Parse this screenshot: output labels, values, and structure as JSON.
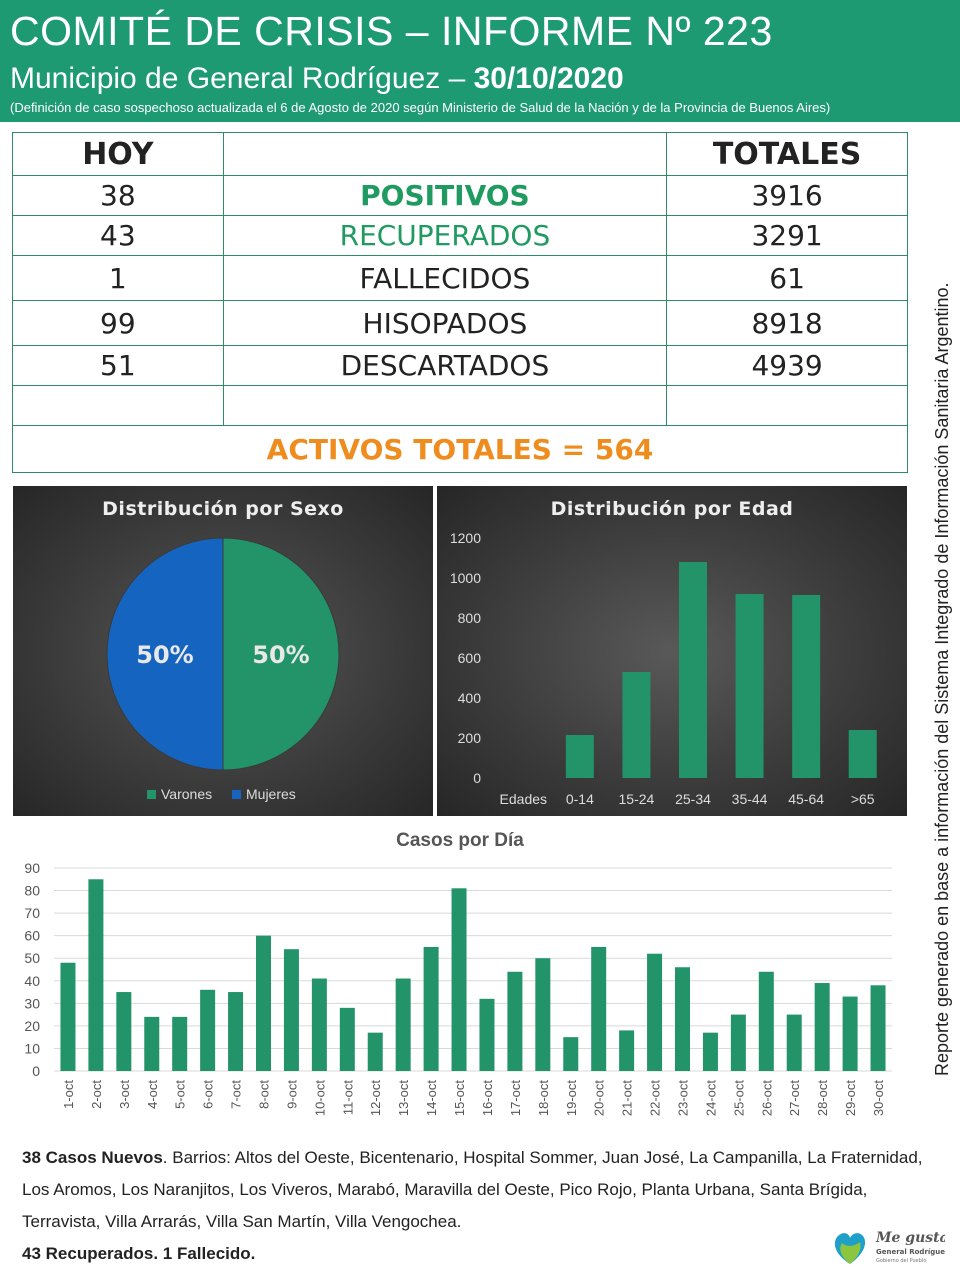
{
  "header": {
    "title": "COMITÉ DE CRISIS – INFORME Nº 223",
    "subtitle_prefix": "Municipio de General Rodríguez – ",
    "date": "30/10/2020",
    "note": "(Definición de caso sospechoso actualizada el 6 de Agosto de 2020 según Ministerio de Salud de la Nación y de la Provincia de Buenos Aires)"
  },
  "table": {
    "col_hoy": "HOY",
    "col_totales": "TOTALES",
    "rows": [
      {
        "hoy": "38",
        "label": "POSITIVOS",
        "total": "3916"
      },
      {
        "hoy": "43",
        "label": "RECUPERADOS",
        "total": "3291"
      },
      {
        "hoy": "1",
        "label": "FALLECIDOS",
        "total": "61"
      },
      {
        "hoy": "99",
        "label": "HISOPADOS",
        "total": "8918"
      },
      {
        "hoy": "51",
        "label": "DESCARTADOS",
        "total": "4939"
      }
    ],
    "activos": "ACTIVOS TOTALES = 564"
  },
  "side_note": "Reporte generado en base a información del Sistema Integrado de Información Sanitaria Argentino.",
  "colors": {
    "green": "#1e9a72",
    "bar": "#23936a",
    "orange": "#ef8c1e",
    "blue": "#1565c0"
  },
  "chart_data": [
    {
      "type": "pie",
      "title": "Distribución por Sexo",
      "labels": [
        "Varones",
        "Mujeres"
      ],
      "values": [
        50,
        50
      ],
      "value_labels": [
        "50%",
        "50%"
      ],
      "colors": [
        "#23936a",
        "#1565c0"
      ],
      "legend": "bottom"
    },
    {
      "type": "bar",
      "title": "Distribución por Edad",
      "categories": [
        "Edades",
        "0-14",
        "15-24",
        "25-34",
        "35-44",
        "45-64",
        ">65"
      ],
      "values": [
        0,
        215,
        530,
        1080,
        920,
        915,
        240
      ],
      "ylim": [
        0,
        1200
      ],
      "yticks": [
        "0",
        "200",
        "400",
        "600",
        "800",
        "1000",
        "1200"
      ]
    },
    {
      "type": "bar",
      "title": "Casos por Día",
      "categories": [
        "1-oct",
        "2-oct",
        "3-oct",
        "4-oct",
        "5-oct",
        "6-oct",
        "7-oct",
        "8-oct",
        "9-oct",
        "10-oct",
        "11-oct",
        "12-oct",
        "13-oct",
        "14-oct",
        "15-oct",
        "16-oct",
        "17-oct",
        "18-oct",
        "19-oct",
        "20-oct",
        "21-oct",
        "22-oct",
        "23-oct",
        "24-oct",
        "25-oct",
        "26-oct",
        "27-oct",
        "28-oct",
        "29-oct",
        "30-oct"
      ],
      "values": [
        48,
        85,
        35,
        24,
        24,
        36,
        35,
        60,
        54,
        41,
        28,
        17,
        41,
        55,
        81,
        32,
        44,
        50,
        15,
        55,
        18,
        52,
        46,
        17,
        25,
        44,
        25,
        39,
        33,
        38
      ],
      "ylim": [
        0,
        90
      ],
      "yticks": [
        "0",
        "10",
        "20",
        "30",
        "40",
        "50",
        "60",
        "70",
        "80",
        "90"
      ],
      "grid": true
    }
  ],
  "footer": {
    "casos_bold": "38 Casos Nuevos",
    "casos_text": ". Barrios: Altos del Oeste, Bicentenario, Hospital Sommer, Juan José, La Campanilla, La Fraternidad, Los Aromos, Los Naranjitos, Los Viveros, Marabó, Maravilla del Oeste, Pico Rojo, Planta Urbana, Santa Brígida, Terravista, Villa Arrarás, Villa San Martín, Villa Vengochea.",
    "recuperados": "43 Recuperados. 1 Fallecido."
  },
  "logo": {
    "line1": "Me gusta",
    "line2": "General Rodríguez",
    "line3": "Gobierno del Pueblo"
  }
}
